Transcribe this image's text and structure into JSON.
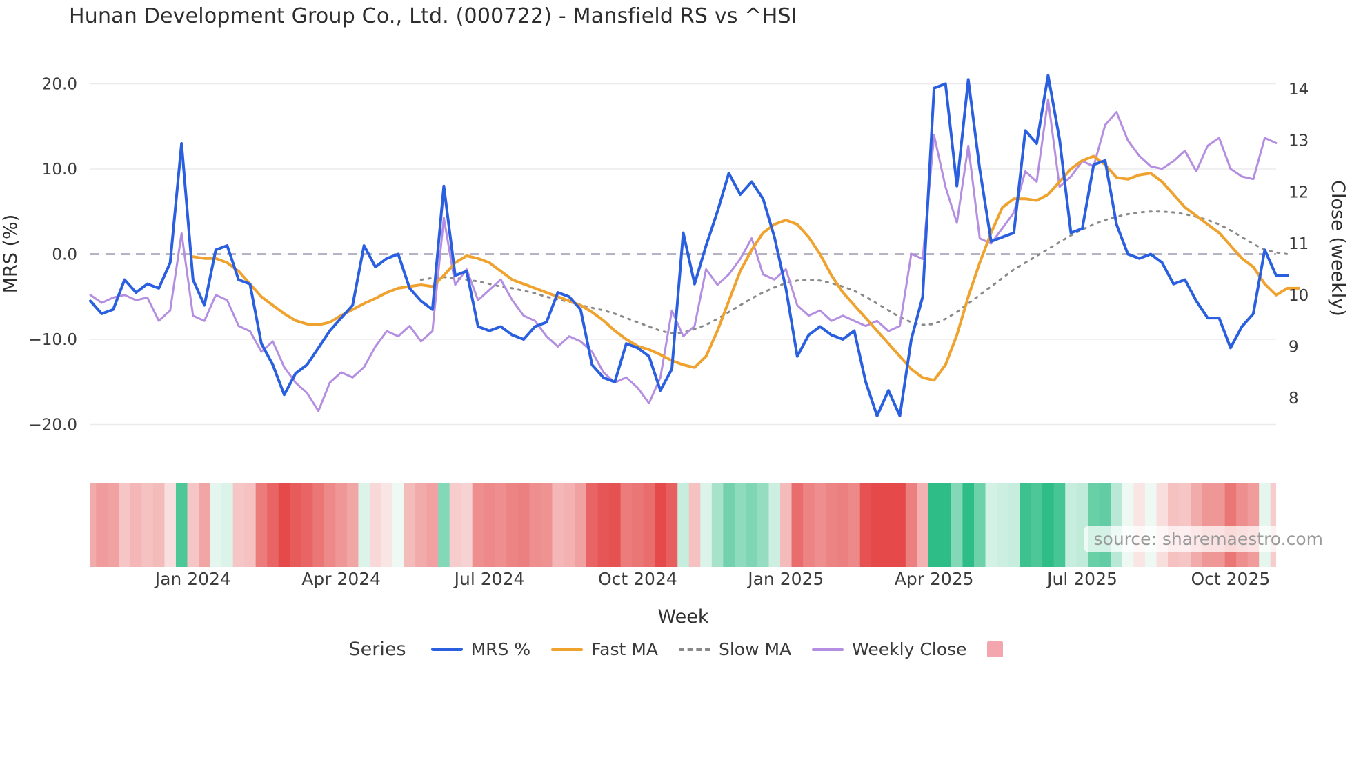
{
  "title": "Hunan Development Group Co., Ltd. (000722) - Mansfield RS vs ^HSI",
  "source": "source: sharemaestro.com",
  "axes": {
    "left_label": "MRS (%)",
    "right_label": "Close (weekly)",
    "x_label": "Week",
    "left_ticks": [
      20,
      10,
      0,
      -10,
      -20
    ],
    "left_tick_labels": [
      "20.0",
      "10.0",
      "0.0",
      "−10.0",
      "−20.0"
    ],
    "right_ticks": [
      14,
      13,
      12,
      11,
      10,
      9,
      8
    ],
    "right_tick_labels": [
      "14",
      "13",
      "12",
      "11",
      "10",
      "9",
      "8"
    ]
  },
  "legend": {
    "title": "Series",
    "items": [
      {
        "label": "MRS %",
        "color": "#2a5fe0",
        "style": "line"
      },
      {
        "label": "Fast MA",
        "color": "#efa22e",
        "style": "line"
      },
      {
        "label": "Slow MA",
        "color": "#8a8a8a",
        "style": "dashed"
      },
      {
        "label": "Weekly Close",
        "color": "#b48ee0",
        "style": "line"
      },
      {
        "label": "",
        "color": "#f3a6ad",
        "style": "square"
      }
    ]
  },
  "chart_data": {
    "type": "line",
    "x_unit": "week_index",
    "n_weeks": 105,
    "grid": "horizontal",
    "zero_line": {
      "value": 0,
      "color": "#8a87a0",
      "style": "dashed"
    },
    "ylim_left": [
      -21.3,
      21.3
    ],
    "ylim_right": [
      7.3,
      14.3
    ],
    "x_ticks": [
      {
        "week": 9,
        "label": "Jan 2024"
      },
      {
        "week": 22,
        "label": "Apr 2024"
      },
      {
        "week": 35,
        "label": "Jul 2024"
      },
      {
        "week": 48,
        "label": "Oct 2024"
      },
      {
        "week": 61,
        "label": "Jan 2025"
      },
      {
        "week": 74,
        "label": "Apr 2025"
      },
      {
        "week": 87,
        "label": "Jul 2025"
      },
      {
        "week": 100,
        "label": "Oct 2025"
      }
    ],
    "series": [
      {
        "name": "MRS %",
        "axis": "left",
        "color": "#2a5fe0",
        "style": "solid",
        "width": 4,
        "values": [
          -5.5,
          -7.0,
          -6.5,
          -3.0,
          -4.5,
          -3.5,
          -4.0,
          -1.0,
          13.0,
          -3.0,
          -6.0,
          0.5,
          1.0,
          -3.0,
          -3.5,
          -10.5,
          -13.0,
          -16.5,
          -14.0,
          -13.0,
          -11.0,
          -9.0,
          -7.5,
          -6.0,
          1.0,
          -1.5,
          -0.5,
          0.0,
          -4.0,
          -5.5,
          -6.5,
          8.0,
          -2.5,
          -2.0,
          -8.5,
          -9.0,
          -8.5,
          -9.5,
          -10.0,
          -8.5,
          -8.0,
          -4.5,
          -5.0,
          -6.5,
          -13.0,
          -14.5,
          -15.0,
          -10.5,
          -11.0,
          -12.0,
          -16.0,
          -13.5,
          2.5,
          -3.5,
          1.0,
          5.0,
          9.5,
          7.0,
          8.5,
          6.5,
          2.0,
          -4.0,
          -12.0,
          -9.5,
          -8.5,
          -9.5,
          -10.0,
          -9.0,
          -15.0,
          -19.0,
          -16.0,
          -19.0,
          -10.0,
          -5.0,
          19.5,
          20.0,
          8.0,
          20.5,
          10.0,
          1.5,
          2.0,
          2.5,
          14.5,
          13.0,
          21.0,
          13.5,
          2.5,
          3.0,
          10.5,
          11.0,
          3.5,
          0.0,
          -0.5,
          0.0,
          -1.0,
          -3.5,
          -3.0,
          -5.5,
          -7.5,
          -7.5,
          -11.0,
          -8.5,
          -7.0,
          0.5,
          -2.5,
          -2.5
        ]
      },
      {
        "name": "Fast MA",
        "axis": "left",
        "color": "#efa22e",
        "style": "solid",
        "width": 4,
        "values": [
          null,
          null,
          null,
          null,
          null,
          null,
          null,
          null,
          null,
          -0.3,
          -0.5,
          -0.5,
          -1.0,
          -2.0,
          -3.5,
          -5.0,
          -6.0,
          -7.0,
          -7.8,
          -8.2,
          -8.3,
          -8.0,
          -7.2,
          -6.5,
          -5.8,
          -5.2,
          -4.5,
          -4.0,
          -3.8,
          -3.6,
          -3.8,
          -2.5,
          -1.0,
          -0.2,
          -0.5,
          -1.0,
          -2.0,
          -3.0,
          -3.5,
          -4.0,
          -4.5,
          -5.0,
          -5.5,
          -6.0,
          -6.8,
          -7.8,
          -9.0,
          -10.0,
          -10.8,
          -11.2,
          -11.8,
          -12.5,
          -13.0,
          -13.3,
          -12.0,
          -9.0,
          -5.5,
          -2.0,
          0.5,
          2.5,
          3.5,
          4.0,
          3.5,
          2.0,
          0.0,
          -2.5,
          -4.5,
          -6.0,
          -7.5,
          -9.0,
          -10.5,
          -12.0,
          -13.5,
          -14.5,
          -14.8,
          -13.0,
          -9.5,
          -5.0,
          -1.0,
          2.5,
          5.5,
          6.5,
          6.5,
          6.3,
          7.0,
          8.5,
          10.0,
          11.0,
          11.5,
          10.5,
          9.0,
          8.8,
          9.3,
          9.5,
          8.5,
          7.0,
          5.5,
          4.5,
          3.5,
          2.5,
          1.0,
          -0.5,
          -1.5,
          -3.5,
          -4.8,
          -4.0,
          -4.0
        ]
      },
      {
        "name": "Slow MA",
        "axis": "left",
        "color": "#8a8a8a",
        "style": "dotted",
        "width": 3,
        "values": [
          null,
          null,
          null,
          null,
          null,
          null,
          null,
          null,
          null,
          null,
          null,
          null,
          null,
          null,
          null,
          null,
          null,
          null,
          null,
          null,
          null,
          null,
          null,
          null,
          null,
          null,
          null,
          null,
          null,
          -3.0,
          -2.8,
          -2.7,
          -2.8,
          -3.0,
          -3.2,
          -3.5,
          -3.8,
          -4.0,
          -4.3,
          -4.6,
          -5.0,
          -5.3,
          -5.6,
          -6.0,
          -6.3,
          -6.6,
          -7.0,
          -7.5,
          -8.0,
          -8.5,
          -9.0,
          -9.3,
          -9.2,
          -8.8,
          -8.3,
          -7.6,
          -6.8,
          -6.0,
          -5.2,
          -4.5,
          -3.9,
          -3.4,
          -3.1,
          -3.0,
          -3.1,
          -3.4,
          -3.8,
          -4.3,
          -5.0,
          -5.8,
          -6.6,
          -7.4,
          -8.0,
          -8.3,
          -8.2,
          -7.6,
          -6.8,
          -5.8,
          -4.8,
          -3.8,
          -2.8,
          -1.8,
          -1.0,
          -0.2,
          0.6,
          1.4,
          2.2,
          2.9,
          3.5,
          4.0,
          4.4,
          4.7,
          4.9,
          5.0,
          5.0,
          4.9,
          4.7,
          4.4,
          4.0,
          3.5,
          2.8,
          2.0,
          1.2,
          0.5,
          0.2,
          0.0
        ]
      },
      {
        "name": "Weekly Close",
        "axis": "right",
        "color": "#b48ee0",
        "style": "solid",
        "width": 3,
        "values": [
          10.0,
          9.85,
          9.95,
          10.0,
          9.9,
          9.95,
          9.5,
          9.7,
          11.2,
          9.6,
          9.5,
          10.0,
          9.9,
          9.4,
          9.3,
          8.9,
          9.1,
          8.6,
          8.3,
          8.1,
          7.75,
          8.3,
          8.5,
          8.4,
          8.6,
          9.0,
          9.3,
          9.2,
          9.4,
          9.1,
          9.3,
          11.5,
          10.2,
          10.5,
          9.9,
          10.1,
          10.3,
          9.9,
          9.6,
          9.5,
          9.2,
          9.0,
          9.2,
          9.1,
          8.9,
          8.5,
          8.3,
          8.4,
          8.2,
          7.9,
          8.4,
          9.7,
          9.2,
          9.4,
          10.5,
          10.2,
          10.4,
          10.7,
          11.1,
          10.4,
          10.3,
          10.5,
          9.8,
          9.6,
          9.7,
          9.5,
          9.6,
          9.5,
          9.4,
          9.5,
          9.3,
          9.4,
          10.8,
          10.7,
          13.1,
          12.1,
          11.4,
          12.9,
          11.1,
          11.0,
          11.3,
          11.6,
          12.4,
          12.2,
          13.8,
          12.1,
          12.3,
          12.6,
          12.5,
          13.3,
          13.55,
          13.0,
          12.7,
          12.5,
          12.45,
          12.6,
          12.8,
          12.4,
          12.9,
          13.05,
          12.45,
          12.3,
          12.25,
          13.05,
          12.95
        ]
      }
    ],
    "heatmap": {
      "description": "weekly color strip derived from MRS % value",
      "negative_color": "#e54949",
      "positive_color": "#2ebd86",
      "neutral_color": "#fbf6f6",
      "uses_series": "MRS %"
    }
  }
}
